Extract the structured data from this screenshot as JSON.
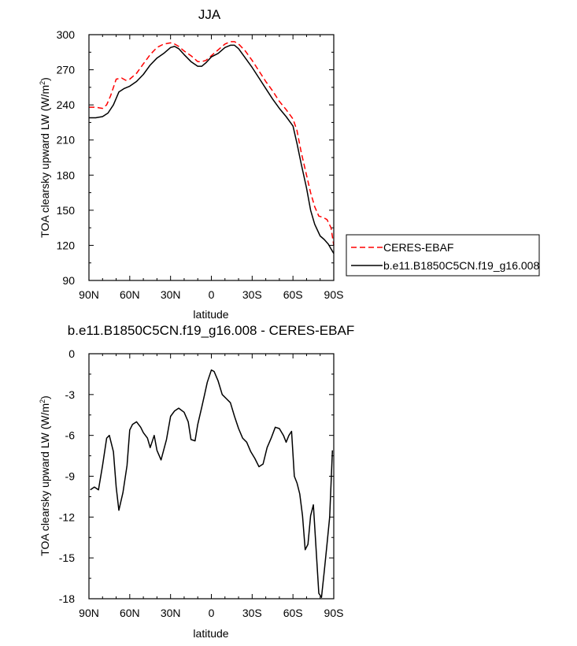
{
  "chart_data": [
    {
      "type": "line",
      "title": "JJA",
      "xlabel": "latitude",
      "ylabel": "TOA clearsky upward LW (W/m^2)",
      "ylabel_main": "TOA clearsky upward LW (W/m",
      "ylabel_sup": "2",
      "ylabel_end": ")",
      "xlim": [
        90,
        -90
      ],
      "ylim": [
        90,
        300
      ],
      "x_ticks": [
        90,
        60,
        30,
        0,
        -30,
        -60,
        -90
      ],
      "x_tick_labels": [
        "90N",
        "60N",
        "30N",
        "0",
        "30S",
        "60S",
        "90S"
      ],
      "y_ticks": [
        90,
        120,
        150,
        180,
        210,
        240,
        270,
        300
      ],
      "y_tick_labels": [
        "90",
        "120",
        "150",
        "180",
        "210",
        "240",
        "270",
        "300"
      ],
      "grid": false,
      "legend_position": "right",
      "series": [
        {
          "name": "CERES-EBAF",
          "color": "#ff0000",
          "dash": "dashed",
          "x": [
            90,
            85,
            80,
            77,
            74,
            70,
            66,
            63,
            60,
            55,
            50,
            45,
            40,
            35,
            30,
            27,
            24,
            20,
            15,
            10,
            7,
            4,
            0,
            -5,
            -10,
            -14,
            -17,
            -20,
            -25,
            -30,
            -35,
            -40,
            -45,
            -50,
            -55,
            -60,
            -63,
            -66,
            -70,
            -73,
            -76,
            -79,
            -82,
            -85,
            -88,
            -90
          ],
          "y": [
            238,
            238,
            237,
            240,
            248,
            262,
            263,
            261,
            262,
            267,
            275,
            283,
            289,
            292,
            293,
            292,
            290,
            286,
            282,
            277,
            277,
            278,
            282,
            287,
            292,
            294,
            294,
            292,
            286,
            278,
            269,
            260,
            252,
            243,
            236,
            228,
            218,
            200,
            180,
            165,
            153,
            145,
            144,
            142,
            135,
            120
          ]
        },
        {
          "name": "b.e11.B1850C5CN.f19_g16.008",
          "color": "#000000",
          "dash": "solid",
          "x": [
            90,
            85,
            80,
            76,
            72,
            68,
            64,
            60,
            55,
            50,
            45,
            40,
            35,
            30,
            27,
            24,
            20,
            15,
            10,
            7,
            4,
            0,
            -5,
            -10,
            -14,
            -17,
            -20,
            -25,
            -30,
            -35,
            -40,
            -45,
            -50,
            -55,
            -60,
            -63,
            -66,
            -70,
            -73,
            -76,
            -80,
            -83,
            -86,
            -88,
            -90
          ],
          "y": [
            229,
            229,
            230,
            233,
            240,
            251,
            254,
            256,
            260,
            266,
            274,
            280,
            284,
            289,
            290,
            288,
            283,
            277,
            273,
            273,
            276,
            281,
            284,
            289,
            291,
            291,
            288,
            280,
            272,
            263,
            254,
            245,
            237,
            230,
            222,
            207,
            190,
            169,
            150,
            138,
            128,
            125,
            121,
            117,
            113
          ]
        }
      ]
    },
    {
      "type": "line",
      "title": "b.e11.B1850C5CN.f19_g16.008 - CERES-EBAF",
      "xlabel": "latitude",
      "ylabel": "TOA clearsky upward LW (W/m^2)",
      "ylabel_main": "TOA clearsky upward LW (W/m",
      "ylabel_sup": "2",
      "ylabel_end": ")",
      "xlim": [
        90,
        -90
      ],
      "ylim": [
        -18,
        0
      ],
      "x_ticks": [
        90,
        60,
        30,
        0,
        -30,
        -60,
        -90
      ],
      "x_tick_labels": [
        "90N",
        "60N",
        "30N",
        "0",
        "30S",
        "60S",
        "90S"
      ],
      "y_ticks": [
        0,
        -3,
        -6,
        -9,
        -12,
        -15,
        -18
      ],
      "y_tick_labels": [
        "0",
        "-3",
        "-6",
        "-9",
        "-12",
        "-15",
        "-18"
      ],
      "grid": false,
      "series": [
        {
          "color": "#000000",
          "dash": "solid",
          "x": [
            89,
            86,
            83,
            80,
            77,
            75,
            72,
            70,
            68,
            65,
            62,
            60,
            58,
            55,
            52,
            50,
            47,
            45,
            42,
            40,
            37,
            33,
            30,
            27,
            24,
            20,
            17,
            15,
            12,
            10,
            7,
            5,
            3,
            0,
            -2,
            -5,
            -8,
            -11,
            -14,
            -17,
            -20,
            -23,
            -26,
            -29,
            -32,
            -35,
            -38,
            -41,
            -44,
            -47,
            -50,
            -53,
            -55,
            -57,
            -59,
            -61,
            -63,
            -65,
            -67,
            -69,
            -71,
            -73,
            -75,
            -77,
            -79,
            -81,
            -83,
            -85,
            -87,
            -89
          ],
          "y": [
            -10.0,
            -9.8,
            -10.0,
            -8.2,
            -6.2,
            -6.0,
            -7.2,
            -9.8,
            -11.5,
            -10.2,
            -8.2,
            -5.6,
            -5.2,
            -5.0,
            -5.4,
            -5.8,
            -6.2,
            -6.9,
            -6.0,
            -7.1,
            -7.8,
            -6.3,
            -4.6,
            -4.2,
            -4.0,
            -4.3,
            -5.0,
            -6.3,
            -6.4,
            -5.2,
            -3.9,
            -3.0,
            -2.1,
            -1.2,
            -1.3,
            -2.0,
            -3.0,
            -3.3,
            -3.6,
            -4.6,
            -5.5,
            -6.2,
            -6.5,
            -7.2,
            -7.7,
            -8.3,
            -8.1,
            -6.9,
            -6.2,
            -5.4,
            -5.5,
            -6.0,
            -6.5,
            -6.0,
            -5.7,
            -9.0,
            -9.5,
            -10.3,
            -11.9,
            -14.4,
            -14.0,
            -11.9,
            -11.1,
            -14.3,
            -17.6,
            -17.9,
            -16.0,
            -14.0,
            -12.0,
            -7.1
          ]
        }
      ]
    }
  ]
}
